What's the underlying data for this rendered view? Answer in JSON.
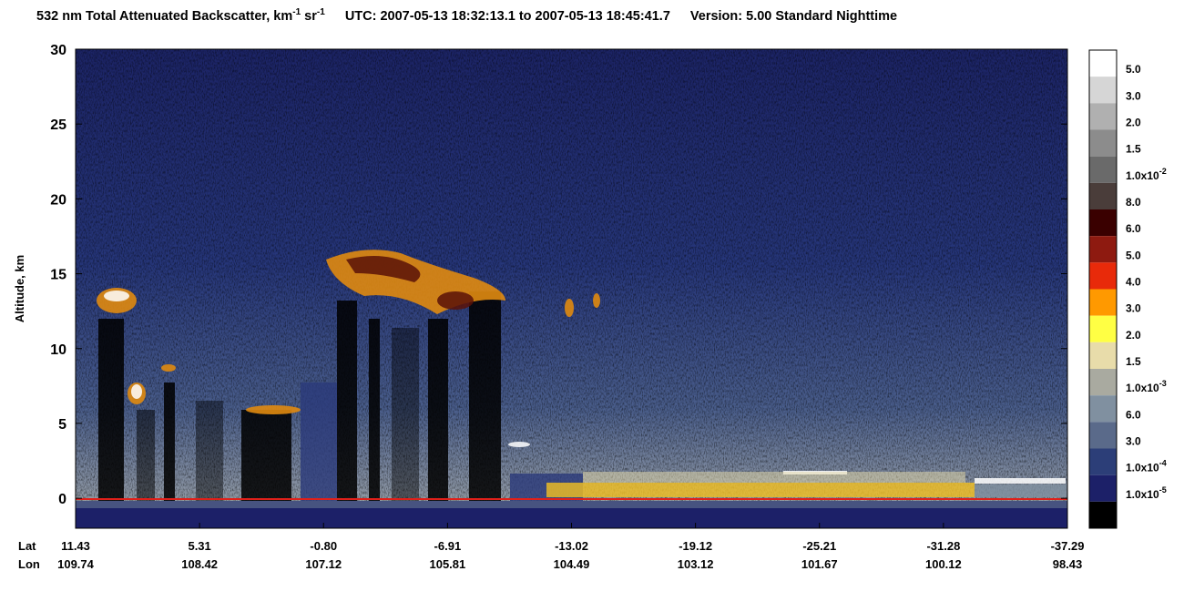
{
  "chart_data": {
    "type": "curtain",
    "title": {
      "main": "532 nm Total Attenuated Backscatter, km",
      "exp1": "-1",
      "unit2": " sr",
      "exp2": "-1",
      "time": "UTC:  2007-05-13 18:32:13.1  to  2007-05-13 18:45:41.7",
      "version": "Version: 5.00  Standard  Nighttime"
    },
    "y_label": "Altitude, km",
    "ylim": [
      -2,
      30
    ],
    "yticks": [
      0,
      5,
      10,
      15,
      20,
      25,
      30
    ],
    "x_row_labels": [
      "Lat",
      "Lon"
    ],
    "lat": [
      "11.43",
      "5.31",
      "-0.80",
      "-6.91",
      "-13.02",
      "-19.12",
      "-25.21",
      "-31.28",
      "-37.29"
    ],
    "lon": [
      "109.74",
      "108.42",
      "107.12",
      "105.81",
      "104.49",
      "103.12",
      "101.67",
      "100.12",
      "98.43"
    ],
    "colorbar": {
      "colors": [
        "#ffffff",
        "#d6d6d6",
        "#b0b0b0",
        "#8c8c8c",
        "#6a6a6a",
        "#4a3d3a",
        "#3a0000",
        "#8e1a10",
        "#e82a0a",
        "#ff9900",
        "#ffff44",
        "#e8dcaa",
        "#a9aaa0",
        "#8090a0",
        "#5a6a8a",
        "#2c3e78",
        "#1c2068",
        "#000000"
      ],
      "labels": [
        {
          "text": "5.0"
        },
        {
          "text": "3.0"
        },
        {
          "text": "2.0"
        },
        {
          "text": "1.5"
        },
        {
          "text": "1.0x10",
          "exp": "-2"
        },
        {
          "text": "8.0"
        },
        {
          "text": "6.0"
        },
        {
          "text": "5.0"
        },
        {
          "text": "4.0"
        },
        {
          "text": "3.0"
        },
        {
          "text": "2.0"
        },
        {
          "text": "1.5"
        },
        {
          "text": "1.0x10",
          "exp": "-3"
        },
        {
          "text": "6.0"
        },
        {
          "text": "3.0"
        },
        {
          "text": "1.0x10",
          "exp": "-4"
        },
        {
          "text": "1.0x10",
          "exp": "-5"
        }
      ]
    }
  }
}
